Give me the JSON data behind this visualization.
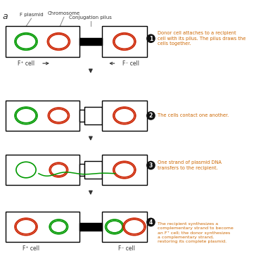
{
  "bg_color": "#ffffff",
  "label_a": "a",
  "red_color": "#cc2200",
  "green_color": "#009900",
  "orange_text_color": "#cc6600",
  "dark_text_color": "#333333",
  "black": "#000000",
  "gray_line": "#888888",
  "step1_text": "Donor cell attaches to a recipient\ncell with its pilus. The pilus draws the\ncells together.",
  "step2_text": "The cells contact one another.",
  "step3_text": "One strand of plasmid DNA\ntransfers to the recipient.",
  "step4_text": "The recipient synthesizes a\ncomplementary strand to become\nan F⁺ cell; the donor synthesizes\na complementary strand,\nrestoring its complete plasmid.",
  "label_fplus": "F⁺ cell",
  "label_fminus": "F⁻ cell",
  "label_fplasmid": "F plasmid",
  "label_chromosome": "Chromosome",
  "label_conjugation": "Conjugation pilus",
  "fig_w": 3.71,
  "fig_h": 3.74,
  "dpi": 100
}
